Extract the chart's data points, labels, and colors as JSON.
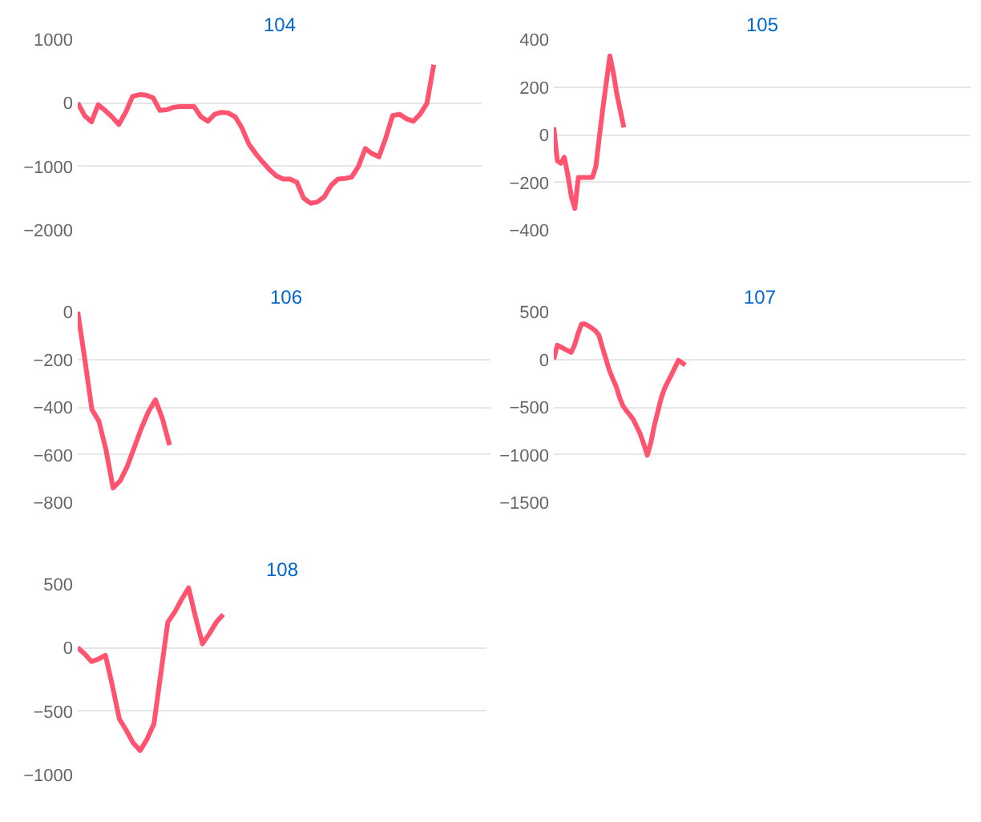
{
  "chart_data": [
    {
      "type": "line",
      "title": "104",
      "categories": [
        null,
        null,
        null,
        null,
        null,
        null,
        null,
        null,
        null,
        null,
        null,
        null,
        null,
        null,
        null,
        null,
        null,
        null,
        null,
        null,
        null,
        null,
        null,
        null,
        null,
        null,
        null,
        null,
        null,
        null,
        null,
        null,
        null,
        null,
        null,
        null,
        null,
        null,
        null,
        null,
        null,
        null,
        null,
        null,
        null,
        null,
        null,
        null,
        null,
        null,
        null,
        null,
        null,
        null,
        null,
        null,
        null,
        null,
        null,
        null
      ],
      "series": [
        {
          "color": "#ff5370",
          "values": [
            0,
            -200,
            -300,
            -30,
            -120,
            -220,
            -340,
            -150,
            100,
            130,
            120,
            80,
            -120,
            -110,
            -70,
            -60,
            -60,
            -60,
            -220,
            -290,
            -180,
            -150,
            -160,
            -220,
            -400,
            -650,
            -800,
            -930,
            -1050,
            -1150,
            -1200,
            -1200,
            -1250,
            -1500,
            -1580,
            -1560,
            -1480,
            -1300,
            -1200,
            -1190,
            -1170,
            -1000,
            -720,
            -800,
            -850,
            -550,
            -200,
            -180,
            -250,
            -290,
            -180,
            -10,
            600,
            null,
            null,
            null,
            null,
            null,
            null,
            null
          ]
        }
      ],
      "ylim": [
        -2000,
        1000
      ],
      "yticks": [
        -2000,
        -1000,
        0,
        1000
      ],
      "grid": "y",
      "tick_labels": "y",
      "line_style": "solid"
    },
    {
      "type": "line",
      "title": "105",
      "categories": [
        null,
        null,
        null,
        null,
        null,
        null,
        null,
        null,
        null,
        null,
        null,
        null,
        null,
        null,
        null,
        null,
        null,
        null,
        null,
        null,
        null,
        null,
        null,
        null,
        null,
        null,
        null,
        null,
        null,
        null,
        null,
        null,
        null,
        null,
        null,
        null,
        null,
        null,
        null,
        null,
        null,
        null,
        null,
        null,
        null,
        null,
        null,
        null,
        null,
        null,
        null,
        null,
        null,
        null,
        null,
        null,
        null,
        null,
        null,
        null,
        null,
        null,
        null,
        null,
        null,
        null,
        null,
        null,
        null,
        null,
        null,
        null,
        null,
        null,
        null,
        null,
        null,
        null,
        null,
        null,
        null,
        null,
        null,
        null,
        null,
        null,
        null,
        null,
        null,
        null,
        null,
        null,
        null,
        null,
        null,
        null,
        null,
        null,
        null,
        null,
        null,
        null,
        null,
        null,
        null,
        null,
        null,
        null,
        null,
        null,
        null,
        null,
        null,
        null,
        null,
        null,
        null,
        null,
        null,
        null
      ],
      "series": [
        {
          "color": "#ff5370",
          "values": [
            30,
            -110,
            -120,
            -95,
            -170,
            -260,
            -310,
            -180,
            -180,
            -180,
            -180,
            -180,
            -135,
            -10,
            110,
            220,
            330,
            260,
            170,
            100,
            30,
            null,
            null,
            null,
            null,
            null,
            null,
            null,
            null,
            null,
            null,
            null,
            null,
            null,
            null,
            null,
            null,
            null,
            null,
            null,
            null,
            null,
            null,
            null,
            null,
            null,
            null,
            null,
            null,
            null,
            null,
            null,
            null,
            null,
            null,
            null,
            null,
            null,
            null,
            null,
            null,
            null,
            null,
            null,
            null,
            null,
            null,
            null,
            null,
            null,
            null,
            null,
            null,
            null,
            null,
            null,
            null,
            null,
            null,
            null,
            null,
            null,
            null,
            null,
            null,
            null,
            null,
            null,
            null,
            null,
            null,
            null,
            null,
            null,
            null,
            null,
            null,
            null,
            null,
            null,
            null,
            null,
            null,
            null,
            null,
            null,
            null,
            null,
            null,
            null,
            null,
            null,
            null,
            null,
            null,
            null,
            null,
            null,
            null,
            null
          ]
        }
      ],
      "ylim": [
        -400,
        400
      ],
      "yticks": [
        -400,
        -200,
        0,
        200,
        400
      ],
      "grid": "y",
      "tick_labels": "y",
      "line_style": "solid"
    },
    {
      "type": "line",
      "title": "106",
      "categories": [
        null,
        null,
        null,
        null,
        null,
        null,
        null,
        null,
        null,
        null,
        null,
        null,
        null,
        null,
        null,
        null,
        null,
        null,
        null,
        null,
        null,
        null,
        null,
        null,
        null,
        null,
        null,
        null,
        null,
        null,
        null,
        null,
        null,
        null,
        null,
        null,
        null,
        null,
        null,
        null,
        null,
        null,
        null,
        null,
        null,
        null,
        null,
        null,
        null,
        null,
        null,
        null,
        null,
        null,
        null,
        null,
        null,
        null,
        null,
        null
      ],
      "series": [
        {
          "color": "#ff5370",
          "values": [
            0,
            -200,
            -410,
            -460,
            -580,
            -740,
            -710,
            -650,
            -570,
            -490,
            -420,
            -370,
            -450,
            -560,
            null,
            null,
            null,
            null,
            null,
            null,
            null,
            null,
            null,
            null,
            null,
            null,
            null,
            null,
            null,
            null,
            null,
            null,
            null,
            null,
            null,
            null,
            null,
            null,
            null,
            null,
            null,
            null,
            null,
            null,
            null,
            null,
            null,
            null,
            null,
            null,
            null,
            null,
            null,
            null,
            null,
            null,
            null,
            null,
            null,
            null
          ]
        }
      ],
      "ylim": [
        -800,
        0
      ],
      "yticks": [
        -800,
        -600,
        -400,
        -200,
        0
      ],
      "grid": "y",
      "tick_labels": "y",
      "line_style": "solid"
    },
    {
      "type": "line",
      "title": "107",
      "categories": [
        null,
        null,
        null,
        null,
        null,
        null,
        null,
        null,
        null,
        null,
        null,
        null,
        null,
        null,
        null,
        null,
        null,
        null,
        null,
        null,
        null,
        null,
        null,
        null,
        null,
        null,
        null,
        null,
        null,
        null,
        null,
        null,
        null,
        null,
        null,
        null,
        null,
        null,
        null,
        null,
        null,
        null,
        null,
        null,
        null,
        null,
        null,
        null,
        null,
        null,
        null,
        null,
        null,
        null,
        null,
        null,
        null,
        null,
        null,
        null,
        null,
        null,
        null,
        null,
        null,
        null,
        null,
        null,
        null,
        null,
        null,
        null,
        null,
        null,
        null,
        null,
        null,
        null,
        null,
        null,
        null,
        null,
        null,
        null,
        null,
        null,
        null,
        null,
        null,
        null,
        null,
        null,
        null,
        null,
        null,
        null,
        null,
        null,
        null,
        null,
        null,
        null,
        null,
        null,
        null,
        null,
        null,
        null,
        null,
        null,
        null,
        null,
        null,
        null,
        null,
        null,
        null,
        null,
        null,
        null
      ],
      "series": [
        {
          "color": "#ff5370",
          "values": [
            0,
            148,
            130,
            111,
            91,
            72,
            150,
            270,
            370,
            372,
            350,
            327,
            300,
            255,
            130,
            10,
            -110,
            -200,
            -285,
            -400,
            -490,
            -540,
            -585,
            -635,
            -710,
            -785,
            -890,
            -1005,
            -880,
            -700,
            -555,
            -410,
            -305,
            -230,
            -160,
            -85,
            -10,
            -35,
            -60,
            null,
            null,
            null,
            null,
            null,
            null,
            null,
            null,
            null,
            null,
            null,
            null,
            null,
            null,
            null,
            null,
            null,
            null,
            null,
            null,
            null,
            null,
            null,
            null,
            null,
            null,
            null,
            null,
            null,
            null,
            null,
            null,
            null,
            null,
            null,
            null,
            null,
            null,
            null,
            null,
            null,
            null,
            null,
            null,
            null,
            null,
            null,
            null,
            null,
            null,
            null,
            null,
            null,
            null,
            null,
            null,
            null,
            null,
            null,
            null,
            null,
            null,
            null,
            null,
            null,
            null,
            null,
            null,
            null,
            null,
            null,
            null,
            null,
            null,
            null,
            null,
            null,
            null,
            null,
            null,
            null
          ]
        }
      ],
      "ylim": [
        -1500,
        500
      ],
      "yticks": [
        -1500,
        -1000,
        -500,
        0,
        500
      ],
      "grid": "y",
      "tick_labels": "y",
      "line_style": "solid"
    },
    {
      "type": "line",
      "title": "108",
      "categories": [
        null,
        null,
        null,
        null,
        null,
        null,
        null,
        null,
        null,
        null,
        null,
        null,
        null,
        null,
        null,
        null,
        null,
        null,
        null,
        null,
        null,
        null,
        null,
        null,
        null,
        null,
        null,
        null,
        null,
        null,
        null,
        null,
        null,
        null,
        null,
        null,
        null,
        null,
        null,
        null,
        null,
        null,
        null,
        null,
        null,
        null,
        null,
        null,
        null,
        null,
        null,
        null,
        null,
        null,
        null,
        null,
        null,
        null,
        null,
        null
      ],
      "series": [
        {
          "color": "#ff5370",
          "values": [
            0,
            -50,
            -110,
            -90,
            -60,
            -300,
            -560,
            -650,
            -750,
            -810,
            -720,
            -600,
            -200,
            200,
            280,
            380,
            470,
            240,
            30,
            110,
            200,
            260,
            null,
            null,
            null,
            null,
            null,
            null,
            null,
            null,
            null,
            null,
            null,
            null,
            null,
            null,
            null,
            null,
            null,
            null,
            null,
            null,
            null,
            null,
            null,
            null,
            null,
            null,
            null,
            null,
            null,
            null,
            null,
            null,
            null,
            null,
            null,
            null,
            null,
            null
          ]
        }
      ],
      "ylim": [
        -1000,
        500
      ],
      "yticks": [
        -1000,
        -500,
        0,
        500
      ],
      "grid": "y",
      "tick_labels": "y",
      "line_style": "solid"
    }
  ]
}
